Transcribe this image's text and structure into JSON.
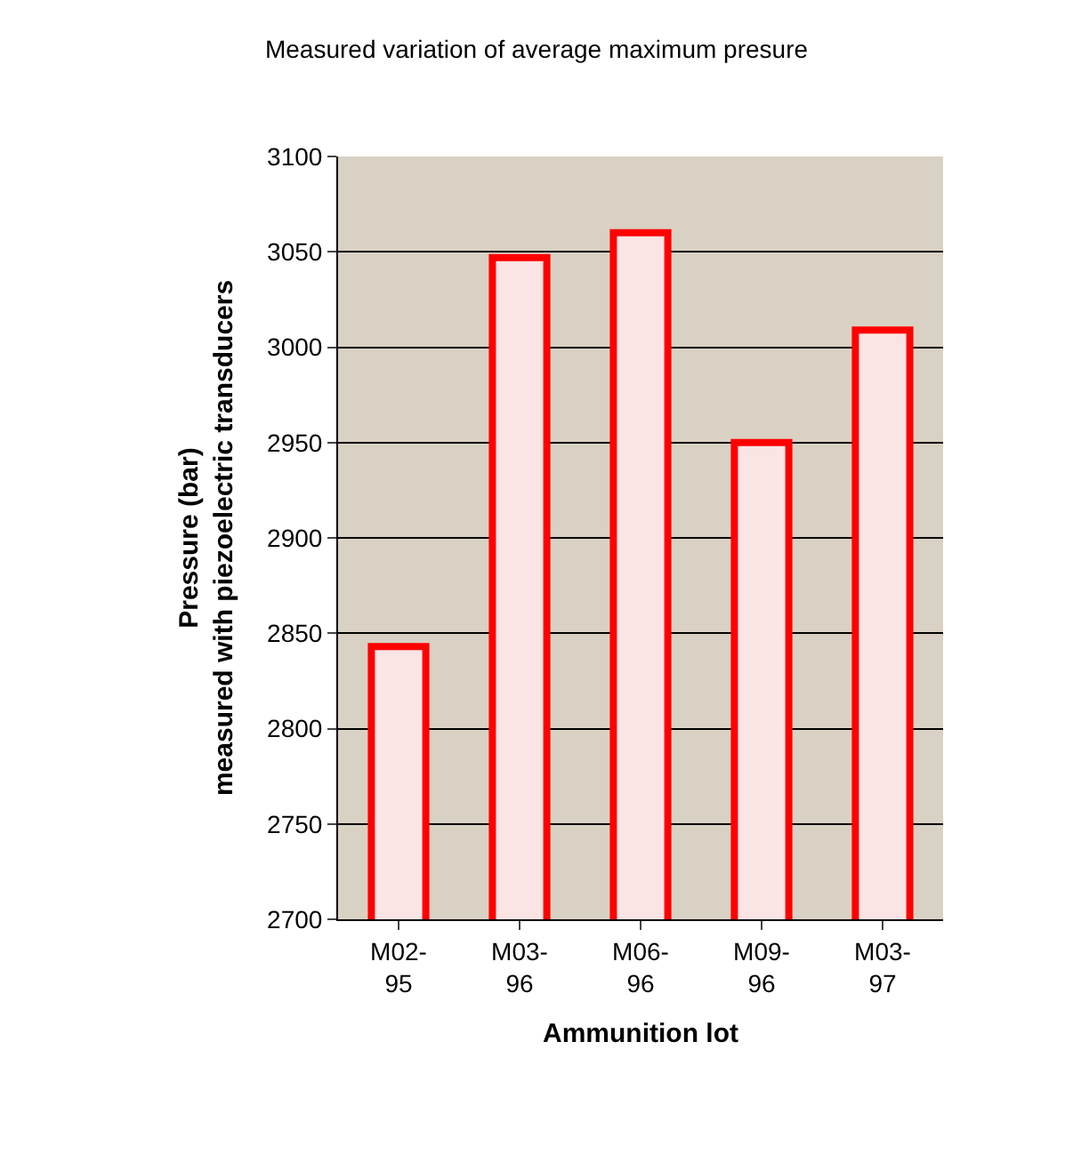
{
  "chart_data": {
    "type": "bar",
    "title": "Measured variation of average maximum presure",
    "xlabel": "Ammunition lot",
    "ylabel": "Pressure (bar)\nmeasured with piezoelectric transducers",
    "categories": [
      "M02-95",
      "M03-96",
      "M06-96",
      "M09-96",
      "M03-97"
    ],
    "values": [
      2843,
      3047,
      3060,
      2950,
      3009
    ],
    "color": "#ff0000",
    "ylim": [
      2700,
      3100
    ],
    "yticks": [
      2700,
      2750,
      2800,
      2850,
      2900,
      2950,
      3000,
      3050,
      3100
    ],
    "grid": "y"
  }
}
